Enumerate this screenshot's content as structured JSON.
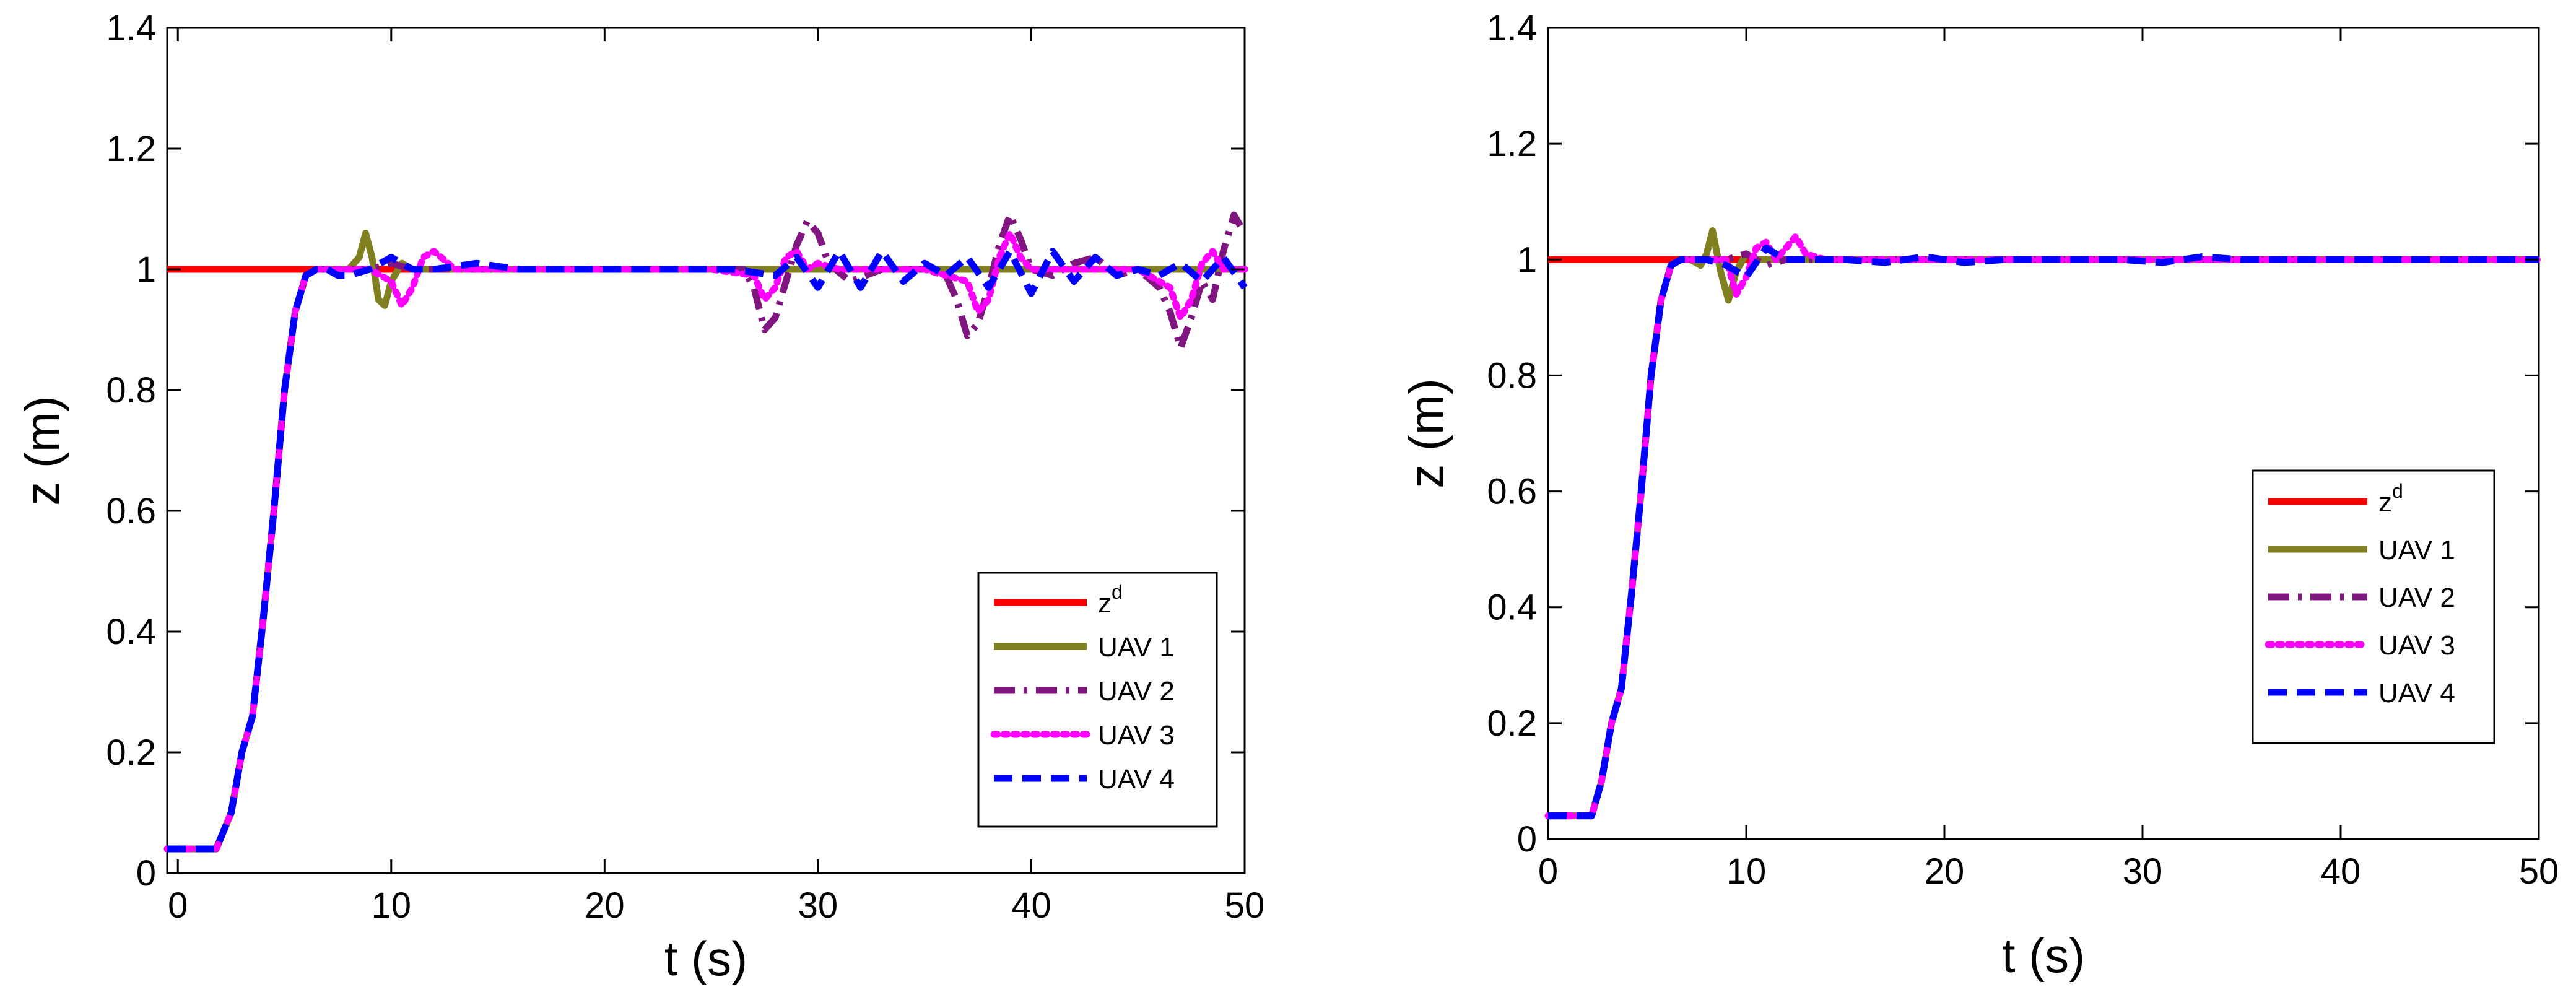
{
  "chart_data": [
    {
      "type": "line",
      "xlabel": "t (s)",
      "ylabel": "z (m)",
      "xlim": [
        -0.5,
        50
      ],
      "ylim": [
        0,
        1.4
      ],
      "xticks": [
        "0",
        "10",
        "20",
        "30",
        "40",
        "50"
      ],
      "yticks": [
        "0",
        "0.2",
        "0.4",
        "0.6",
        "0.8",
        "1",
        "1.2",
        "1.4"
      ],
      "grid": false,
      "legend_position": "bottom-right",
      "legend": [
        {
          "name": "z",
          "superscript": "d"
        },
        {
          "name": "UAV 1"
        },
        {
          "name": "UAV 2"
        },
        {
          "name": "UAV 3"
        },
        {
          "name": "UAV 4"
        }
      ],
      "series": [
        {
          "name": "z^d",
          "color": "#ff0000",
          "style": "solid",
          "x": [
            -0.5,
            50
          ],
          "y": [
            1.0,
            1.0
          ]
        },
        {
          "name": "UAV 1",
          "color": "#808020",
          "style": "solid",
          "x": [
            -0.5,
            1.8,
            2.5,
            3.0,
            3.5,
            4.0,
            4.5,
            5.0,
            5.5,
            6.0,
            6.5,
            7.0,
            7.5,
            8.0,
            8.5,
            8.8,
            9.1,
            9.4,
            9.7,
            10.0,
            10.5,
            11.0,
            12,
            14,
            16,
            18,
            20,
            25,
            30,
            35,
            40,
            45,
            50
          ],
          "y": [
            0.04,
            0.04,
            0.1,
            0.2,
            0.26,
            0.42,
            0.6,
            0.8,
            0.93,
            0.99,
            1.0,
            1.0,
            1.0,
            1.0,
            1.02,
            1.06,
            1.02,
            0.95,
            0.94,
            0.98,
            1.01,
            1.0,
            1.0,
            1.0,
            1.0,
            1.0,
            1.0,
            1.0,
            1.0,
            1.0,
            1.0,
            1.0,
            1.0
          ]
        },
        {
          "name": "UAV 2",
          "color": "#80167f",
          "style": "dashdot",
          "x": [
            -0.5,
            1.8,
            2.5,
            3.0,
            3.5,
            4.0,
            4.5,
            5.0,
            5.5,
            6.0,
            6.5,
            7.5,
            9.0,
            10.0,
            11.0,
            12,
            15,
            20,
            25,
            26.5,
            27.0,
            27.5,
            28.0,
            28.5,
            29.0,
            29.5,
            30.0,
            30.5,
            31.5,
            33,
            35,
            36.0,
            36.5,
            37.0,
            37.5,
            38.0,
            38.5,
            39.0,
            39.5,
            40.0,
            41.0,
            42.0,
            43,
            44,
            45,
            46.0,
            46.5,
            47.0,
            47.5,
            48.0,
            48.5,
            49.0,
            49.5,
            50
          ],
          "y": [
            0.04,
            0.04,
            0.1,
            0.2,
            0.26,
            0.42,
            0.6,
            0.8,
            0.93,
            0.99,
            1.0,
            1.0,
            1.0,
            1.01,
            1.0,
            1.0,
            1.0,
            1.0,
            1.0,
            1.0,
            0.97,
            0.9,
            0.92,
            0.98,
            1.04,
            1.08,
            1.06,
            1.01,
            0.98,
            1.0,
            1.0,
            0.99,
            0.95,
            0.89,
            0.91,
            0.97,
            1.04,
            1.09,
            1.05,
            1.0,
            0.99,
            1.01,
            1.02,
            0.99,
            1.0,
            0.97,
            0.93,
            0.87,
            0.92,
            0.98,
            0.95,
            1.03,
            1.09,
            1.06
          ]
        },
        {
          "name": "UAV 3",
          "color": "#ff00ff",
          "style": "dotted",
          "x": [
            -0.5,
            1.8,
            2.5,
            3.0,
            3.5,
            4.0,
            4.5,
            5.0,
            5.5,
            6.0,
            6.5,
            7.5,
            9.0,
            10.0,
            10.5,
            11.0,
            11.5,
            12.0,
            13,
            15,
            20,
            25,
            27.0,
            27.5,
            28.0,
            28.5,
            29.0,
            29.5,
            30.0,
            31,
            33,
            35,
            37.0,
            37.5,
            38.0,
            38.5,
            39.0,
            39.5,
            40.0,
            41,
            43,
            45,
            46.5,
            47.0,
            47.5,
            48.0,
            48.5,
            49.0,
            50
          ],
          "y": [
            0.04,
            0.04,
            0.1,
            0.2,
            0.26,
            0.42,
            0.6,
            0.8,
            0.93,
            0.99,
            1.0,
            1.0,
            1.0,
            0.98,
            0.94,
            0.97,
            1.02,
            1.03,
            1.0,
            1.0,
            1.0,
            1.0,
            0.99,
            0.95,
            0.97,
            1.02,
            1.03,
            1.0,
            1.01,
            1.0,
            1.0,
            1.0,
            0.98,
            0.93,
            0.95,
            1.02,
            1.06,
            1.02,
            1.0,
            1.0,
            1.0,
            1.0,
            0.97,
            0.92,
            0.95,
            1.01,
            1.03,
            1.0,
            1.0
          ]
        },
        {
          "name": "UAV 4",
          "color": "#0000ff",
          "style": "dashed",
          "x": [
            -0.5,
            1.8,
            2.5,
            3.0,
            3.5,
            4.0,
            4.5,
            5.0,
            5.5,
            6.0,
            6.5,
            7.0,
            7.5,
            8.0,
            9.0,
            10.0,
            11.0,
            12.0,
            14,
            16,
            18,
            20,
            22,
            24,
            26,
            28.0,
            29.0,
            30.0,
            31.0,
            32.0,
            33.0,
            34.0,
            35.0,
            36.0,
            37.0,
            38.0,
            39.0,
            40.0,
            41.0,
            42.0,
            43.0,
            44.0,
            45.0,
            46.0,
            47.0,
            48.0,
            49.0,
            50
          ],
          "y": [
            0.04,
            0.04,
            0.1,
            0.2,
            0.26,
            0.42,
            0.6,
            0.8,
            0.93,
            0.99,
            1.0,
            1.0,
            0.99,
            0.99,
            1.0,
            1.02,
            1.0,
            1.0,
            1.01,
            1.0,
            1.0,
            1.0,
            1.0,
            1.0,
            1.0,
            0.99,
            1.02,
            0.97,
            1.03,
            0.97,
            1.03,
            0.98,
            1.01,
            0.99,
            1.02,
            0.97,
            1.03,
            0.96,
            1.03,
            0.98,
            1.02,
            0.99,
            1.0,
            0.99,
            1.01,
            0.98,
            1.02,
            0.97
          ]
        }
      ]
    },
    {
      "type": "line",
      "xlabel": "t (s)",
      "ylabel": "z (m)",
      "xlim": [
        0,
        50
      ],
      "ylim": [
        0,
        1.4
      ],
      "xticks": [
        "0",
        "10",
        "20",
        "30",
        "40",
        "50"
      ],
      "yticks": [
        "0",
        "0.2",
        "0.4",
        "0.6",
        "0.8",
        "1",
        "1.2",
        "1.4"
      ],
      "grid": false,
      "legend_position": "right-center",
      "legend": [
        {
          "name": "z",
          "superscript": "d"
        },
        {
          "name": "UAV 1"
        },
        {
          "name": "UAV 2"
        },
        {
          "name": "UAV 3"
        },
        {
          "name": "UAV 4"
        }
      ],
      "series": [
        {
          "name": "z^d",
          "color": "#ff0000",
          "style": "solid",
          "x": [
            0,
            50
          ],
          "y": [
            1.0,
            1.0
          ]
        },
        {
          "name": "UAV 1",
          "color": "#808020",
          "style": "solid",
          "x": [
            0,
            2.2,
            2.7,
            3.2,
            3.7,
            4.2,
            4.7,
            5.2,
            5.7,
            6.2,
            6.7,
            7.2,
            7.7,
            8.0,
            8.3,
            8.7,
            9.1,
            9.5,
            10.0,
            10.5,
            11.0,
            12,
            14,
            16,
            20,
            25,
            30,
            35,
            40,
            45,
            50
          ],
          "y": [
            0.04,
            0.04,
            0.1,
            0.2,
            0.26,
            0.42,
            0.6,
            0.8,
            0.93,
            0.99,
            1.0,
            1.0,
            0.99,
            1.01,
            1.05,
            0.98,
            0.93,
            0.98,
            1.01,
            1.0,
            1.0,
            1.0,
            1.0,
            1.0,
            1.0,
            1.0,
            1.0,
            1.0,
            1.0,
            1.0,
            1.0
          ]
        },
        {
          "name": "UAV 2",
          "color": "#80167f",
          "style": "dashdot",
          "x": [
            0,
            2.2,
            2.7,
            3.2,
            3.7,
            4.2,
            4.7,
            5.2,
            5.7,
            6.2,
            6.7,
            7.2,
            8.0,
            9.0,
            10.0,
            11.0,
            12.0,
            14,
            16,
            20,
            25,
            30,
            35,
            40,
            45,
            50
          ],
          "y": [
            0.04,
            0.04,
            0.1,
            0.2,
            0.26,
            0.42,
            0.6,
            0.8,
            0.93,
            0.99,
            1.0,
            1.0,
            1.0,
            1.0,
            1.01,
            0.99,
            1.0,
            1.0,
            1.0,
            1.0,
            1.0,
            1.0,
            1.0,
            1.0,
            1.0,
            1.0
          ]
        },
        {
          "name": "UAV 3",
          "color": "#ff00ff",
          "style": "dotted",
          "x": [
            0,
            2.2,
            2.7,
            3.2,
            3.7,
            4.2,
            4.7,
            5.2,
            5.7,
            6.2,
            6.7,
            7.2,
            8.0,
            9.0,
            9.5,
            10.0,
            10.5,
            11.0,
            11.5,
            12.0,
            12.5,
            13.0,
            14,
            16,
            20,
            25,
            30,
            35,
            40,
            45,
            50
          ],
          "y": [
            0.04,
            0.04,
            0.1,
            0.2,
            0.26,
            0.42,
            0.6,
            0.8,
            0.93,
            0.99,
            1.0,
            1.0,
            1.0,
            1.0,
            0.94,
            0.97,
            1.02,
            1.03,
            1.0,
            1.02,
            1.04,
            1.01,
            1.0,
            1.0,
            1.0,
            1.0,
            1.0,
            1.0,
            1.0,
            1.0,
            1.0
          ]
        },
        {
          "name": "UAV 4",
          "color": "#0000ff",
          "style": "dashed",
          "x": [
            0,
            2.2,
            2.7,
            3.2,
            3.7,
            4.2,
            4.7,
            5.2,
            5.7,
            6.2,
            6.7,
            7.2,
            8.0,
            9.0,
            10.0,
            11.0,
            12.0,
            13,
            15,
            17,
            19,
            21,
            23,
            25,
            27,
            29,
            31,
            33,
            35,
            37,
            39,
            41,
            43,
            45,
            47,
            49,
            50
          ],
          "y": [
            0.04,
            0.04,
            0.1,
            0.2,
            0.26,
            0.42,
            0.6,
            0.8,
            0.93,
            0.99,
            1.0,
            1.0,
            1.0,
            0.99,
            0.97,
            1.02,
            1.0,
            1.0,
            1.0,
            0.995,
            1.005,
            0.995,
            1.0,
            1.0,
            1.0,
            1.0,
            0.995,
            1.005,
            1.0,
            1.0,
            1.0,
            1.0,
            1.0,
            1.0,
            1.0,
            1.0,
            1.0
          ]
        }
      ]
    }
  ]
}
